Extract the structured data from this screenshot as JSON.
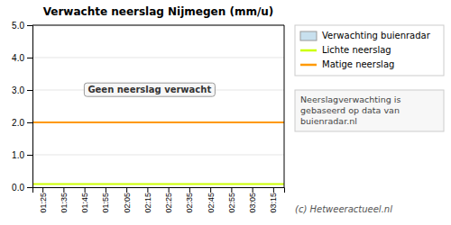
{
  "chart_data": {
    "type": "bar",
    "title": "Verwachte neerslag Nijmegen (mm/u)",
    "categories": [
      "01:25",
      "01:35",
      "01:45",
      "01:55",
      "02:05",
      "02:15",
      "02:25",
      "02:35",
      "02:45",
      "02:55",
      "03:05",
      "03:15"
    ],
    "series": [
      {
        "name": "Verwachting buienradar",
        "color": "#c8e0ee",
        "values": [
          null,
          null,
          null,
          null,
          null,
          null,
          null,
          null,
          null,
          null,
          null,
          null
        ]
      }
    ],
    "reference_lines": [
      {
        "name": "Lichte neerslag",
        "y": 0.1,
        "color": "#ccff00"
      },
      {
        "name": "Matige neerslag",
        "y": 2.0,
        "color": "#ff9900"
      }
    ],
    "annotations": [
      {
        "text": "Geen neerslag verwacht",
        "y": 3.0
      }
    ],
    "info_text": "Neerslagverwachting is\ngebaseerd op data van\nbuienradar.nl",
    "credit": "(c) Hetweeractueel.nl",
    "ylim": [
      0.0,
      5.0
    ],
    "yticks": [
      {
        "value": 0.0,
        "label": "0.0"
      },
      {
        "value": 1.0,
        "label": "1.0"
      },
      {
        "value": 2.0,
        "label": "2.0"
      },
      {
        "value": 3.0,
        "label": "3.0"
      },
      {
        "value": 4.0,
        "label": "4.0"
      },
      {
        "value": 5.0,
        "label": "5.0"
      }
    ],
    "grid": true,
    "legend": "right"
  }
}
